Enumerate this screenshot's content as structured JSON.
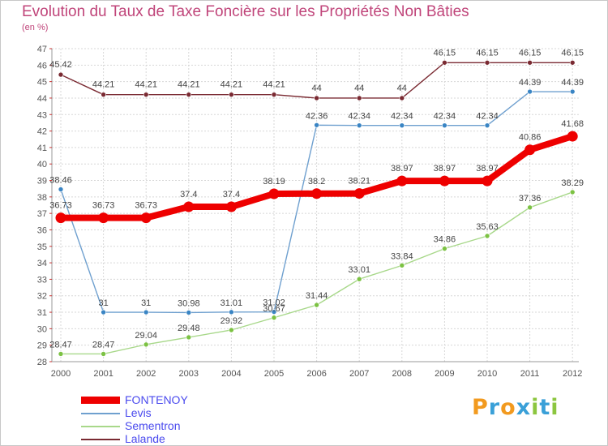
{
  "header": {
    "title": "Evolution du Taux de Taxe Foncière sur les Propriétés Non Bâties",
    "unit": "(en %)"
  },
  "brand": {
    "letters": [
      "P",
      "r",
      "o",
      "x",
      "i",
      "t",
      "i"
    ],
    "colors": [
      "#f29a1f",
      "#3aa0d8",
      "#f29a1f",
      "#3aa0d8",
      "#8cc63f",
      "#3aa0d8",
      "#8cc63f"
    ]
  },
  "chart_data": {
    "type": "line",
    "title": "Evolution du Taux de Taxe Foncière sur les Propriétés Non Bâties",
    "ylabel": "(en %)",
    "xlabel": "",
    "ylim": [
      28,
      47
    ],
    "yticks": [
      28,
      29,
      30,
      31,
      32,
      33,
      34,
      35,
      36,
      37,
      38,
      39,
      40,
      41,
      42,
      43,
      44,
      45,
      46,
      47
    ],
    "grid": true,
    "categories": [
      "2000",
      "2001",
      "2002",
      "2003",
      "2004",
      "2005",
      "2006",
      "2007",
      "2008",
      "2009",
      "2010",
      "2011",
      "2012"
    ],
    "series": [
      {
        "name": "FONTENOY",
        "color": "#ee0000",
        "thick": true,
        "values": [
          36.73,
          36.73,
          36.73,
          37.4,
          37.4,
          38.19,
          38.2,
          38.21,
          38.97,
          38.97,
          38.97,
          40.86,
          41.68
        ],
        "labels": [
          "36.73",
          "36.73",
          "36.73",
          "37.4",
          "37.4",
          "38.19",
          "38.2",
          "38.21",
          "38.97",
          "38.97",
          "38.97",
          "40.86",
          "41.68"
        ]
      },
      {
        "name": "Levis",
        "color": "#6fa0cf",
        "point": "#3a85c4",
        "thick": false,
        "values": [
          38.46,
          31,
          31,
          30.98,
          31.01,
          31.02,
          42.36,
          42.34,
          42.34,
          42.34,
          42.34,
          44.39,
          44.39
        ],
        "labels": [
          "38.46",
          "31",
          "31",
          "30.98",
          "31.01",
          "31.02",
          "42.36",
          "42.34",
          "42.34",
          "42.34",
          "42.34",
          "44.39",
          "44.39"
        ]
      },
      {
        "name": "Sementron",
        "color": "#a8d88a",
        "point": "#7cc243",
        "thick": false,
        "values": [
          28.47,
          28.47,
          29.04,
          29.48,
          29.92,
          30.67,
          31.44,
          33.01,
          33.84,
          34.86,
          35.63,
          37.36,
          38.29
        ],
        "labels": [
          "28.47",
          "28.47",
          "29.04",
          "29.48",
          "29.92",
          "30.67",
          "31.44",
          "33.01",
          "33.84",
          "34.86",
          "35.63",
          "37.36",
          "38.29"
        ]
      },
      {
        "name": "Lalande",
        "color": "#7a2a32",
        "point": "#7a2a32",
        "thick": false,
        "values": [
          45.42,
          44.21,
          44.21,
          44.21,
          44.21,
          44.21,
          44,
          44,
          44,
          46.15,
          46.15,
          46.15,
          46.15
        ],
        "labels": [
          "45.42",
          "44.21",
          "44.21",
          "44.21",
          "44.21",
          "44.21",
          "44",
          "44",
          "44",
          "46.15",
          "46.15",
          "46.15",
          "46.15"
        ]
      }
    ]
  }
}
